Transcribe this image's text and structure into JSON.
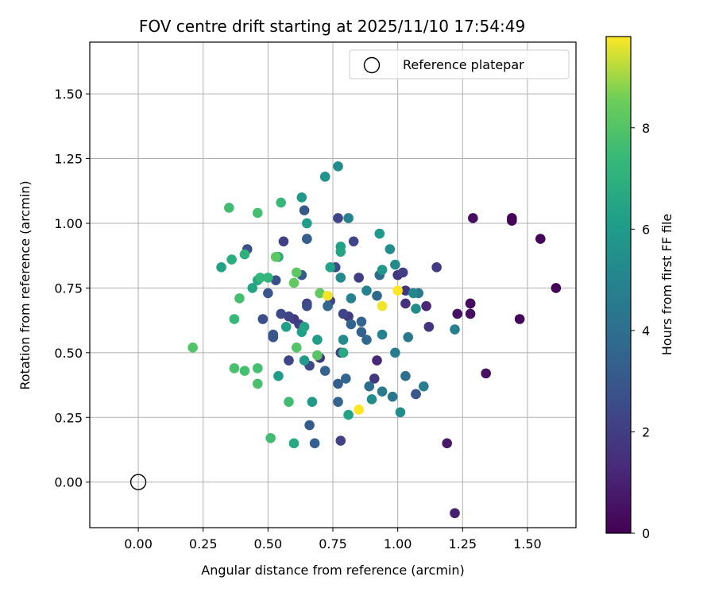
{
  "chart_data": {
    "type": "scatter",
    "title": "FOV centre drift starting at 2025/11/10 17:54:49",
    "xlabel": "Angular distance from reference (arcmin)",
    "ylabel": "Rotation from reference (arcmin)",
    "xlim": [
      -0.187,
      1.687
    ],
    "ylim": [
      -0.176,
      1.7
    ],
    "xticks": [
      0.0,
      0.25,
      0.5,
      0.75,
      1.0,
      1.25,
      1.5
    ],
    "xtick_labels": [
      "0.00",
      "0.25",
      "0.50",
      "0.75",
      "1.00",
      "1.25",
      "1.50"
    ],
    "yticks": [
      0.0,
      0.25,
      0.5,
      0.75,
      1.0,
      1.25,
      1.5
    ],
    "ytick_labels": [
      "0.00",
      "0.25",
      "0.50",
      "0.75",
      "1.00",
      "1.25",
      "1.50"
    ],
    "grid": true,
    "legend": {
      "placement": "top-right",
      "entries": [
        "Reference platepar"
      ]
    },
    "reference_point": {
      "x": 0.0,
      "y": 0.0,
      "label": "Reference platepar"
    },
    "colorbar": {
      "label": "Hours from first FF file",
      "colormap": "viridis",
      "range": [
        0,
        9.8
      ],
      "ticks": [
        0,
        2,
        4,
        6,
        8
      ],
      "tick_labels": [
        "0",
        "2",
        "4",
        "6",
        "8"
      ]
    },
    "points": [
      [
        1.44,
        1.01,
        0.1
      ],
      [
        1.44,
        1.02,
        0.1
      ],
      [
        1.55,
        0.94,
        0.1
      ],
      [
        1.61,
        0.75,
        0.1
      ],
      [
        1.47,
        0.63,
        0.2
      ],
      [
        1.29,
        1.02,
        0.4
      ],
      [
        1.28,
        0.69,
        0.3
      ],
      [
        1.28,
        0.69,
        0.3
      ],
      [
        1.28,
        0.65,
        0.4
      ],
      [
        1.23,
        0.65,
        0.5
      ],
      [
        1.34,
        0.42,
        0.5
      ],
      [
        1.19,
        0.15,
        0.8
      ],
      [
        1.22,
        -0.12,
        1.0
      ],
      [
        1.11,
        0.68,
        1.2
      ],
      [
        1.12,
        0.6,
        1.7
      ],
      [
        1.15,
        0.83,
        1.9
      ],
      [
        1.07,
        0.34,
        1.2
      ],
      [
        0.92,
        0.47,
        1.2
      ],
      [
        1.03,
        0.69,
        1.6
      ],
      [
        1.03,
        0.74,
        1.8
      ],
      [
        1.0,
        0.8,
        1.7
      ],
      [
        1.02,
        0.81,
        2.0
      ],
      [
        0.91,
        0.4,
        1.8
      ],
      [
        0.85,
        0.79,
        2.0
      ],
      [
        0.83,
        0.93,
        2.3
      ],
      [
        0.81,
        0.64,
        1.9
      ],
      [
        0.79,
        0.65,
        2.3
      ],
      [
        0.78,
        0.16,
        2.2
      ],
      [
        0.77,
        1.02,
        2.3
      ],
      [
        0.78,
        0.5,
        2.0
      ],
      [
        0.76,
        0.83,
        2.5
      ],
      [
        0.74,
        0.7,
        2.2
      ],
      [
        0.7,
        0.48,
        1.8
      ],
      [
        0.65,
        0.69,
        2.2
      ],
      [
        0.65,
        0.68,
        2.6
      ],
      [
        0.66,
        0.45,
        2.4
      ],
      [
        0.62,
        0.61,
        2.1
      ],
      [
        0.6,
        0.63,
        1.9
      ],
      [
        0.58,
        0.64,
        2.2
      ],
      [
        0.58,
        0.47,
        2.3
      ],
      [
        0.56,
        0.93,
        2.1
      ],
      [
        0.55,
        0.65,
        2.4
      ],
      [
        0.53,
        0.78,
        2.6
      ],
      [
        0.52,
        0.56,
        2.8
      ],
      [
        0.52,
        0.57,
        3.0
      ],
      [
        0.5,
        0.73,
        2.9
      ],
      [
        0.48,
        0.63,
        2.6
      ],
      [
        0.42,
        0.9,
        2.7
      ],
      [
        0.64,
        1.05,
        3.0
      ],
      [
        0.65,
        0.94,
        2.7
      ],
      [
        0.65,
        0.94,
        3.3
      ],
      [
        0.63,
        0.8,
        3.1
      ],
      [
        0.66,
        0.22,
        3.2
      ],
      [
        0.68,
        0.15,
        3.4
      ],
      [
        0.72,
        0.43,
        3.5
      ],
      [
        0.73,
        0.68,
        3.6
      ],
      [
        0.77,
        0.38,
        3.3
      ],
      [
        0.77,
        0.31,
        3.5
      ],
      [
        0.8,
        0.4,
        3.6
      ],
      [
        0.82,
        0.61,
        3.5
      ],
      [
        0.86,
        0.62,
        3.5
      ],
      [
        0.86,
        0.58,
        3.4
      ],
      [
        0.88,
        0.55,
        3.7
      ],
      [
        0.89,
        0.37,
        3.9
      ],
      [
        0.93,
        0.8,
        3.8
      ],
      [
        0.92,
        0.72,
        3.8
      ],
      [
        1.03,
        0.41,
        4.0
      ],
      [
        1.07,
        0.34,
        3.0
      ],
      [
        1.04,
        0.56,
        4.4
      ],
      [
        1.08,
        0.73,
        4.5
      ],
      [
        1.1,
        0.37,
        4.7
      ],
      [
        0.98,
        0.33,
        4.3
      ],
      [
        0.94,
        0.35,
        4.5
      ],
      [
        0.94,
        0.57,
        4.8
      ],
      [
        0.99,
        0.5,
        4.6
      ],
      [
        1.22,
        0.59,
        4.8
      ],
      [
        1.01,
        0.27,
        5.4
      ],
      [
        1.06,
        0.73,
        5.1
      ],
      [
        1.07,
        0.67,
        5.4
      ],
      [
        0.88,
        0.74,
        4.9
      ],
      [
        0.81,
        1.02,
        4.9
      ],
      [
        0.82,
        0.71,
        4.9
      ],
      [
        0.78,
        0.79,
        5.2
      ],
      [
        0.79,
        0.55,
        5.3
      ],
      [
        0.9,
        0.32,
        5.4
      ],
      [
        0.97,
        0.9,
        5.4
      ],
      [
        0.99,
        0.84,
        5.3
      ],
      [
        0.94,
        0.82,
        5.9
      ],
      [
        0.93,
        0.96,
        5.9
      ],
      [
        0.77,
        1.22,
        5.4
      ],
      [
        0.72,
        1.18,
        5.7
      ],
      [
        0.63,
        1.1,
        5.9
      ],
      [
        0.65,
        1.0,
        6.1
      ],
      [
        0.74,
        0.83,
        6.3
      ],
      [
        0.78,
        0.91,
        6.2
      ],
      [
        0.78,
        0.89,
        6.4
      ],
      [
        0.69,
        0.55,
        6.1
      ],
      [
        0.67,
        0.31,
        6.0
      ],
      [
        0.64,
        0.47,
        6.0
      ],
      [
        0.63,
        0.58,
        6.2
      ],
      [
        0.64,
        0.6,
        6.4
      ],
      [
        0.57,
        0.6,
        6.2
      ],
      [
        0.54,
        0.41,
        6.1
      ],
      [
        0.6,
        0.15,
        6.6
      ],
      [
        0.81,
        0.26,
        6.4
      ],
      [
        0.79,
        0.5,
        6.6
      ],
      [
        0.54,
        0.87,
        6.5
      ],
      [
        0.46,
        0.78,
        6.5
      ],
      [
        0.44,
        0.75,
        6.4
      ],
      [
        0.32,
        0.83,
        6.3
      ],
      [
        0.36,
        0.86,
        6.9
      ],
      [
        0.41,
        0.88,
        7.0
      ],
      [
        0.47,
        0.79,
        7.3
      ],
      [
        0.5,
        0.79,
        7.2
      ],
      [
        0.55,
        1.08,
        7.4
      ],
      [
        0.46,
        1.04,
        7.7
      ],
      [
        0.35,
        1.06,
        7.6
      ],
      [
        0.39,
        0.71,
        7.7
      ],
      [
        0.37,
        0.63,
        7.4
      ],
      [
        0.37,
        0.44,
        7.8
      ],
      [
        0.41,
        0.43,
        7.7
      ],
      [
        0.46,
        0.44,
        7.7
      ],
      [
        0.46,
        0.38,
        7.8
      ],
      [
        0.51,
        0.17,
        7.6
      ],
      [
        0.58,
        0.31,
        7.6
      ],
      [
        0.61,
        0.52,
        8.0
      ],
      [
        0.69,
        0.49,
        8.1
      ],
      [
        0.7,
        0.73,
        8.3
      ],
      [
        0.6,
        0.77,
        8.3
      ],
      [
        0.61,
        0.81,
        8.2
      ],
      [
        0.21,
        0.52,
        8.0
      ],
      [
        0.53,
        0.87,
        8.2
      ],
      [
        0.73,
        0.72,
        9.7
      ],
      [
        1.0,
        0.74,
        9.8
      ],
      [
        0.94,
        0.68,
        9.7
      ],
      [
        0.85,
        0.28,
        9.8
      ]
    ]
  }
}
